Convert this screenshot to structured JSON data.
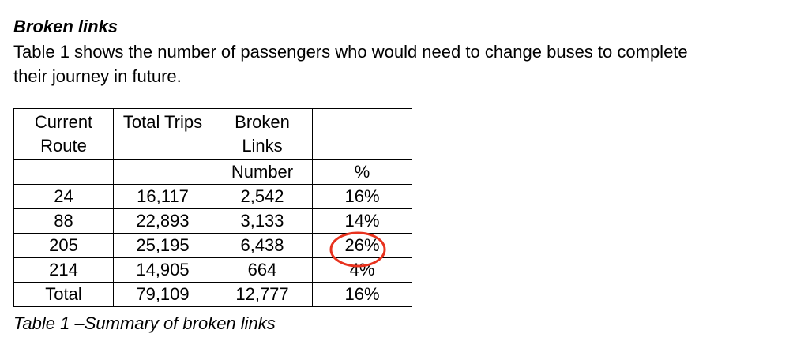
{
  "heading": "Broken links",
  "paragraph": {
    "lines": [
      "Table 1 shows the number of passengers who would need to change buses to complete",
      "their journey in future."
    ]
  },
  "table": {
    "header": [
      "Current Route",
      "Total Trips",
      "Broken Links"
    ],
    "subheader": [
      "Number",
      "%"
    ],
    "rows": [
      [
        "24",
        "16,117",
        "2,542",
        "16%"
      ],
      [
        "88",
        "22,893",
        "3,133",
        "14%"
      ],
      [
        "205",
        "25,195",
        "6,438",
        "26%"
      ],
      [
        "214",
        "14,905",
        "664",
        "4%"
      ],
      [
        "Total",
        "79,109",
        "12,777",
        "16%"
      ]
    ],
    "caption": "Table 1 –Summary of broken links"
  }
}
